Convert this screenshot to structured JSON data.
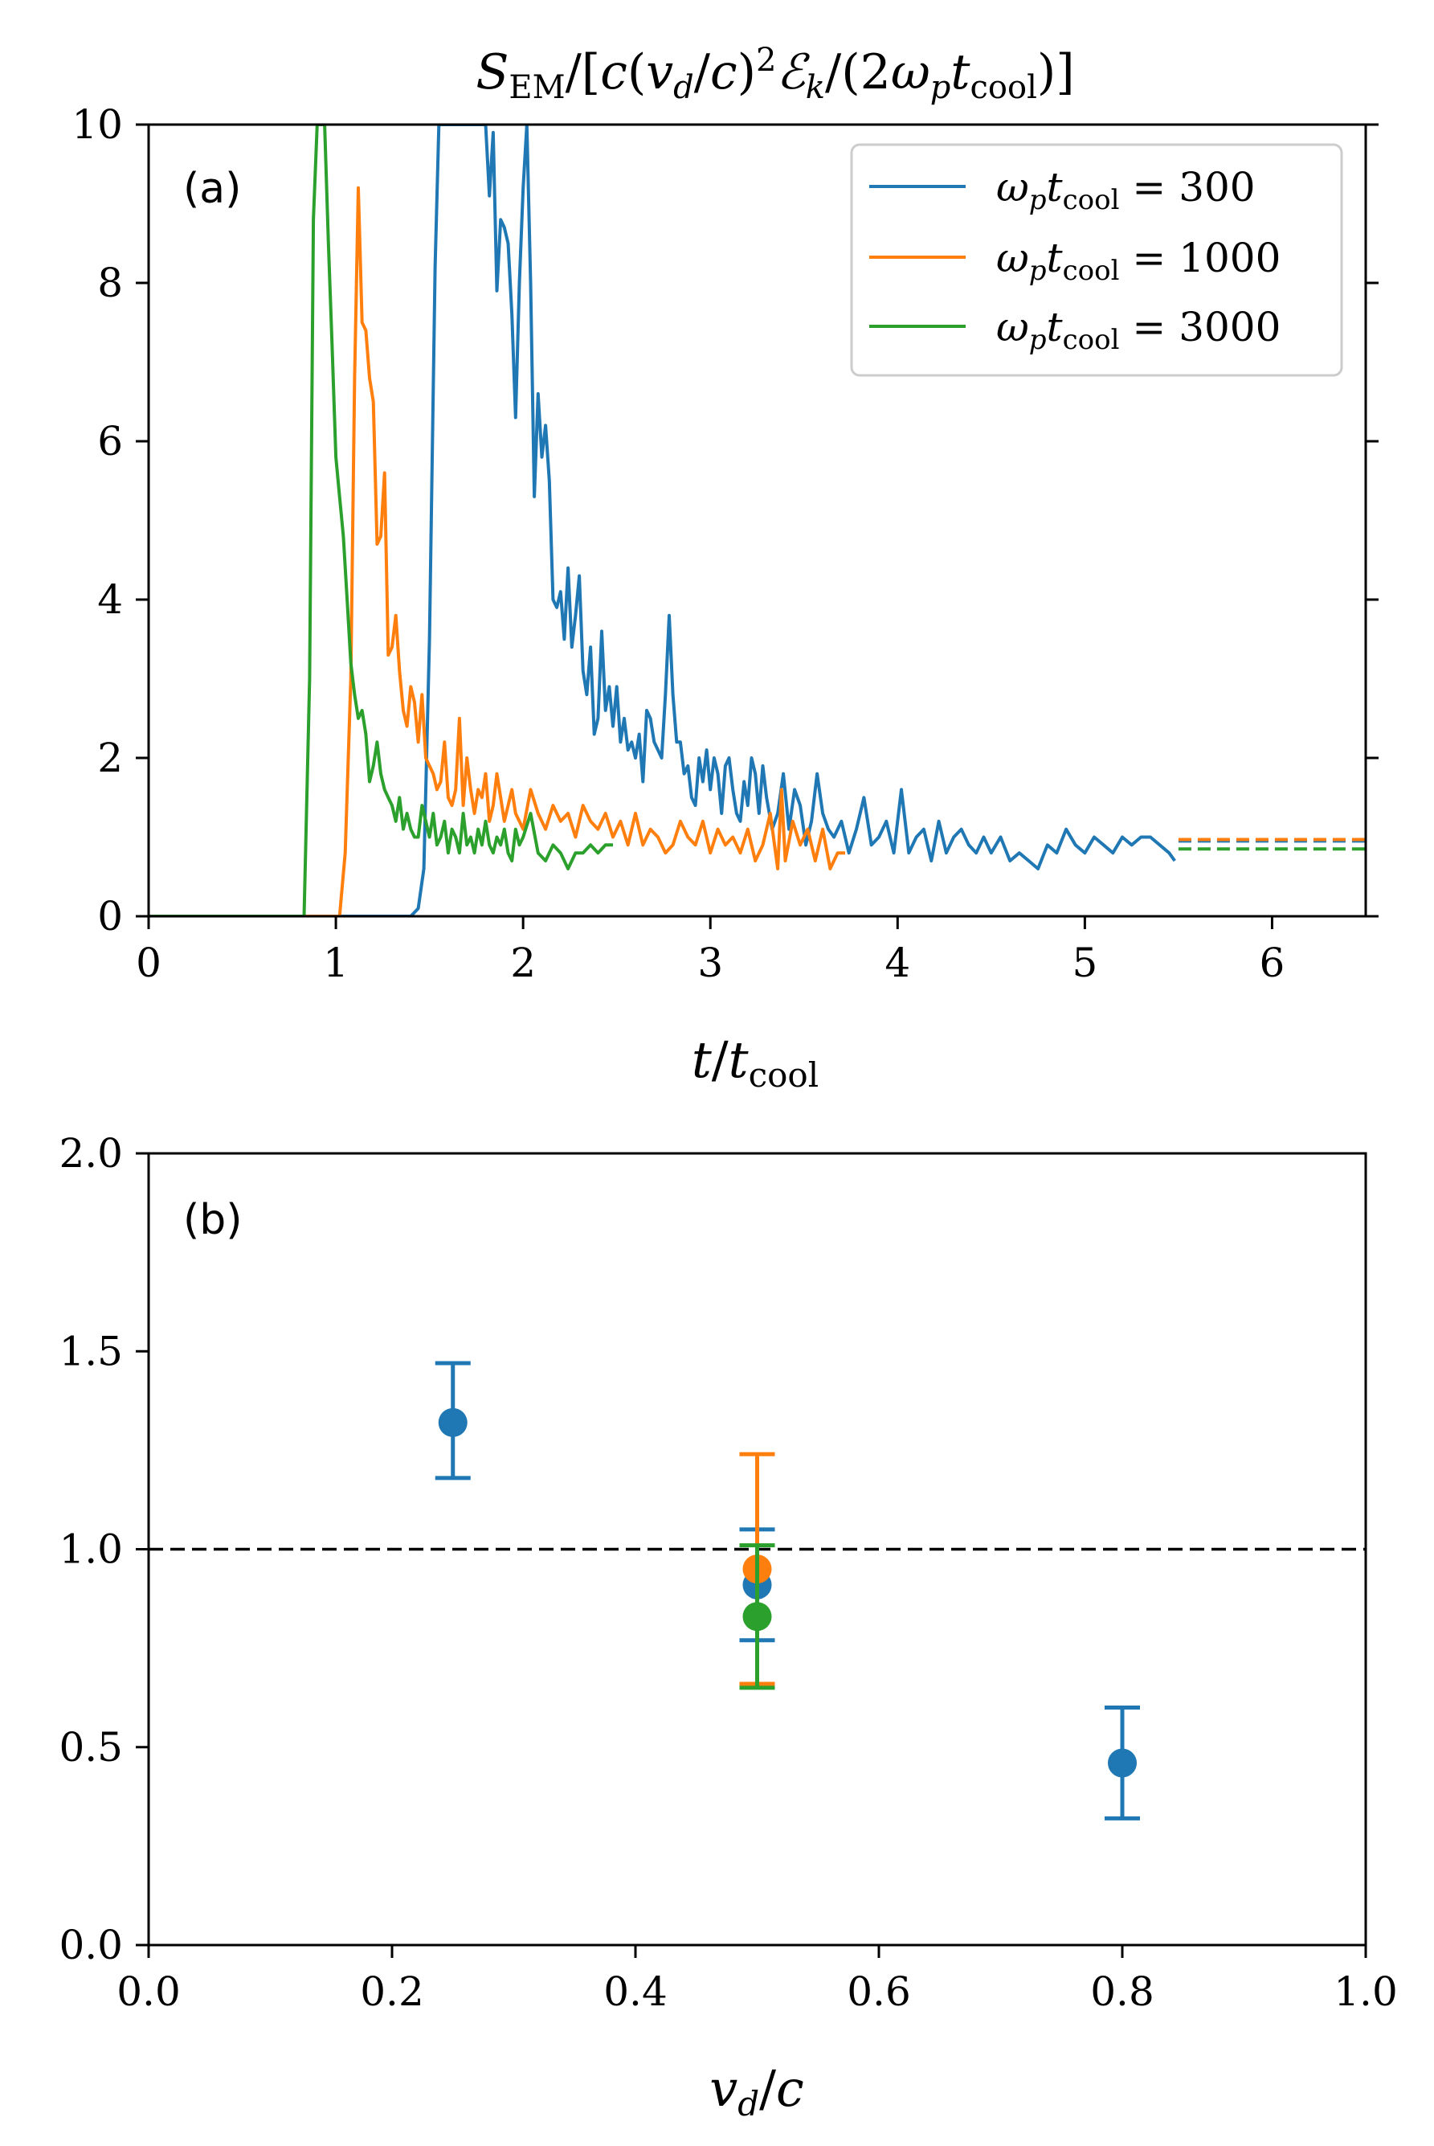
{
  "chart_data": [
    {
      "id": "a",
      "type": "line",
      "panel_label": "(a)",
      "title": "S_EM/[c(v_d/c)^2 E_k/(2 ω_p t_cool)]",
      "xlabel": "t/t_cool",
      "ylabel": "",
      "xlim": [
        0,
        6.5
      ],
      "ylim": [
        0,
        10
      ],
      "xticks": [
        0,
        1,
        2,
        3,
        4,
        5,
        6
      ],
      "xtick_labels": [
        "0",
        "1",
        "2",
        "3",
        "4",
        "5",
        "6"
      ],
      "yticks": [
        0,
        2,
        4,
        6,
        8,
        10
      ],
      "ytick_labels": [
        "0",
        "2",
        "4",
        "6",
        "8",
        "10"
      ],
      "legend_position": "top-right",
      "series": [
        {
          "name": "ω_p t_cool = 300",
          "legend_text": "300",
          "color": "#1f77b4",
          "x": [
            0,
            1.4,
            1.44,
            1.47,
            1.5,
            1.53,
            1.55,
            1.57,
            1.6,
            1.65,
            1.7,
            1.75,
            1.8,
            1.82,
            1.84,
            1.86,
            1.88,
            1.9,
            1.92,
            1.94,
            1.96,
            1.98,
            2.0,
            2.02,
            2.04,
            2.06,
            2.08,
            2.1,
            2.12,
            2.14,
            2.16,
            2.18,
            2.2,
            2.22,
            2.24,
            2.26,
            2.28,
            2.3,
            2.32,
            2.34,
            2.36,
            2.38,
            2.4,
            2.42,
            2.44,
            2.46,
            2.48,
            2.5,
            2.52,
            2.54,
            2.56,
            2.58,
            2.6,
            2.62,
            2.64,
            2.66,
            2.68,
            2.7,
            2.72,
            2.74,
            2.76,
            2.78,
            2.8,
            2.82,
            2.84,
            2.86,
            2.88,
            2.9,
            2.92,
            2.94,
            2.96,
            2.98,
            3.0,
            3.02,
            3.04,
            3.06,
            3.08,
            3.1,
            3.12,
            3.14,
            3.16,
            3.18,
            3.2,
            3.22,
            3.24,
            3.26,
            3.28,
            3.3,
            3.33,
            3.36,
            3.39,
            3.42,
            3.45,
            3.48,
            3.51,
            3.54,
            3.57,
            3.6,
            3.63,
            3.66,
            3.7,
            3.74,
            3.78,
            3.82,
            3.86,
            3.9,
            3.94,
            3.98,
            4.02,
            4.06,
            4.1,
            4.14,
            4.18,
            4.22,
            4.26,
            4.3,
            4.34,
            4.38,
            4.42,
            4.46,
            4.5,
            4.55,
            4.6,
            4.65,
            4.7,
            4.75,
            4.8,
            4.85,
            4.9,
            4.95,
            5.0,
            5.05,
            5.1,
            5.15,
            5.2,
            5.25,
            5.3,
            5.35,
            5.4,
            5.45,
            5.48
          ],
          "y": [
            0,
            0,
            0.1,
            0.6,
            3.5,
            8.2,
            10,
            10,
            10,
            10,
            10,
            10,
            10,
            9.1,
            9.9,
            7.9,
            8.8,
            8.7,
            8.5,
            7.6,
            6.3,
            8.0,
            9.2,
            10,
            8.0,
            5.3,
            6.6,
            5.8,
            6.2,
            5.5,
            4.0,
            3.9,
            4.1,
            3.5,
            4.4,
            3.4,
            3.8,
            4.3,
            3.1,
            2.8,
            3.4,
            2.3,
            2.5,
            3.6,
            2.6,
            2.9,
            2.4,
            2.9,
            2.2,
            2.5,
            2.1,
            2.2,
            2.0,
            2.3,
            1.7,
            2.6,
            2.5,
            2.2,
            2.1,
            2.0,
            2.8,
            3.8,
            2.8,
            2.2,
            2.2,
            1.8,
            1.9,
            1.5,
            1.4,
            2.0,
            1.7,
            2.1,
            1.6,
            2.0,
            1.8,
            1.3,
            1.9,
            2.0,
            1.6,
            1.3,
            1.2,
            1.7,
            1.4,
            2.0,
            1.8,
            1.3,
            1.9,
            1.5,
            1.1,
            1.3,
            1.8,
            1.1,
            1.6,
            1.4,
            0.9,
            1.2,
            1.8,
            1.3,
            1.1,
            1.0,
            1.2,
            0.8,
            1.1,
            1.5,
            0.9,
            1.0,
            1.2,
            0.8,
            1.6,
            0.8,
            1.0,
            1.1,
            0.7,
            1.2,
            0.8,
            1.0,
            1.1,
            0.9,
            0.8,
            1.0,
            0.8,
            1.0,
            0.7,
            0.8,
            0.7,
            0.6,
            0.9,
            0.8,
            1.1,
            0.9,
            0.8,
            1.0,
            0.9,
            0.8,
            1.0,
            0.9,
            1.0,
            1.0,
            0.9,
            0.8,
            0.7
          ],
          "extrapolated_level": 0.95
        },
        {
          "name": "ω_p t_cool = 1000",
          "legend_text": "1000",
          "color": "#ff7f0e",
          "x": [
            0,
            1.02,
            1.05,
            1.08,
            1.1,
            1.12,
            1.14,
            1.16,
            1.18,
            1.2,
            1.22,
            1.24,
            1.26,
            1.28,
            1.3,
            1.32,
            1.34,
            1.36,
            1.38,
            1.4,
            1.42,
            1.44,
            1.46,
            1.48,
            1.5,
            1.52,
            1.54,
            1.56,
            1.58,
            1.6,
            1.62,
            1.64,
            1.66,
            1.68,
            1.7,
            1.72,
            1.74,
            1.76,
            1.78,
            1.8,
            1.82,
            1.84,
            1.86,
            1.88,
            1.9,
            1.92,
            1.94,
            1.96,
            1.98,
            2.0,
            2.04,
            2.08,
            2.12,
            2.16,
            2.2,
            2.24,
            2.28,
            2.32,
            2.36,
            2.4,
            2.44,
            2.48,
            2.52,
            2.56,
            2.6,
            2.64,
            2.68,
            2.72,
            2.76,
            2.8,
            2.84,
            2.88,
            2.92,
            2.96,
            3.0,
            3.04,
            3.08,
            3.12,
            3.16,
            3.2,
            3.24,
            3.28,
            3.32,
            3.36,
            3.38,
            3.4,
            3.44,
            3.48,
            3.52,
            3.56,
            3.6,
            3.64,
            3.68,
            3.72
          ],
          "y": [
            0,
            0,
            0.8,
            3.0,
            6.8,
            9.2,
            7.5,
            7.4,
            6.8,
            6.5,
            4.7,
            4.8,
            5.6,
            3.3,
            3.4,
            3.8,
            3.1,
            2.6,
            2.4,
            2.9,
            2.7,
            2.2,
            2.8,
            2.0,
            1.9,
            1.8,
            1.6,
            1.7,
            2.2,
            1.5,
            1.4,
            1.6,
            2.5,
            1.4,
            2.0,
            1.6,
            1.3,
            1.6,
            1.5,
            1.8,
            1.2,
            1.4,
            1.8,
            1.5,
            1.2,
            1.4,
            1.6,
            1.3,
            1.2,
            1.1,
            1.6,
            1.3,
            1.1,
            1.4,
            1.2,
            1.3,
            1.0,
            1.4,
            1.2,
            1.1,
            1.3,
            1.0,
            1.2,
            0.9,
            1.3,
            0.9,
            1.1,
            1.0,
            0.8,
            0.9,
            1.2,
            1.0,
            0.9,
            1.2,
            0.8,
            1.1,
            0.9,
            1.0,
            0.8,
            1.1,
            0.7,
            0.9,
            1.3,
            0.6,
            1.6,
            0.7,
            1.2,
            0.9,
            1.1,
            0.7,
            1.1,
            0.6,
            0.8,
            0.8
          ],
          "extrapolated_level": 0.97
        },
        {
          "name": "ω_p t_cool = 3000",
          "legend_text": "3000",
          "color": "#2ca02c",
          "x": [
            0,
            0.83,
            0.86,
            0.88,
            0.9,
            0.92,
            0.94,
            0.96,
            0.98,
            1.0,
            1.02,
            1.04,
            1.06,
            1.08,
            1.1,
            1.12,
            1.14,
            1.16,
            1.18,
            1.2,
            1.22,
            1.24,
            1.26,
            1.28,
            1.3,
            1.32,
            1.34,
            1.36,
            1.38,
            1.4,
            1.42,
            1.44,
            1.46,
            1.48,
            1.5,
            1.52,
            1.54,
            1.56,
            1.58,
            1.6,
            1.62,
            1.64,
            1.66,
            1.68,
            1.7,
            1.72,
            1.74,
            1.76,
            1.78,
            1.8,
            1.82,
            1.84,
            1.86,
            1.88,
            1.9,
            1.92,
            1.94,
            1.96,
            1.98,
            2.0,
            2.04,
            2.08,
            2.12,
            2.16,
            2.2,
            2.24,
            2.28,
            2.32,
            2.36,
            2.4,
            2.44,
            2.48
          ],
          "y": [
            0,
            0,
            3.0,
            8.8,
            10,
            10,
            10,
            8.5,
            7.2,
            5.8,
            5.3,
            4.8,
            4.0,
            3.2,
            2.8,
            2.5,
            2.6,
            2.3,
            1.7,
            1.9,
            2.2,
            1.8,
            1.6,
            1.5,
            1.4,
            1.2,
            1.5,
            1.1,
            1.3,
            1.1,
            1.0,
            1.0,
            1.4,
            1.2,
            1.0,
            1.3,
            0.9,
            1.0,
            1.2,
            0.8,
            1.1,
            1.0,
            0.8,
            1.3,
            0.9,
            1.0,
            0.8,
            1.1,
            0.9,
            1.2,
            0.9,
            0.8,
            1.0,
            0.9,
            1.1,
            0.8,
            0.7,
            1.1,
            0.9,
            1.0,
            1.3,
            0.8,
            0.7,
            0.9,
            0.8,
            0.6,
            0.8,
            0.8,
            0.9,
            0.8,
            0.9,
            0.9
          ],
          "extrapolated_level": 0.85
        }
      ]
    },
    {
      "id": "b",
      "type": "scatter",
      "panel_label": "(b)",
      "title": "",
      "xlabel": "v_d/c",
      "ylabel": "",
      "xlim": [
        0.0,
        1.0
      ],
      "ylim": [
        0.0,
        2.0
      ],
      "xticks": [
        0.0,
        0.2,
        0.4,
        0.6,
        0.8,
        1.0
      ],
      "xtick_labels": [
        "0.0",
        "0.2",
        "0.4",
        "0.6",
        "0.8",
        "1.0"
      ],
      "yticks": [
        0.0,
        0.5,
        1.0,
        1.5,
        2.0
      ],
      "ytick_labels": [
        "0.0",
        "0.5",
        "1.0",
        "1.5",
        "2.0"
      ],
      "reference_line_y": 1.0,
      "points": [
        {
          "series": "ω_p t_cool = 300",
          "color": "#1f77b4",
          "x": 0.25,
          "y": 1.32,
          "err_low": 1.18,
          "err_high": 1.47
        },
        {
          "series": "ω_p t_cool = 300",
          "color": "#1f77b4",
          "x": 0.5,
          "y": 0.91,
          "err_low": 0.77,
          "err_high": 1.05
        },
        {
          "series": "ω_p t_cool = 300",
          "color": "#1f77b4",
          "x": 0.8,
          "y": 0.46,
          "err_low": 0.32,
          "err_high": 0.6
        },
        {
          "series": "ω_p t_cool = 1000",
          "color": "#ff7f0e",
          "x": 0.5,
          "y": 0.95,
          "err_low": 0.66,
          "err_high": 1.24
        },
        {
          "series": "ω_p t_cool = 3000",
          "color": "#2ca02c",
          "x": 0.5,
          "y": 0.83,
          "err_low": 0.65,
          "err_high": 1.01
        }
      ]
    }
  ]
}
